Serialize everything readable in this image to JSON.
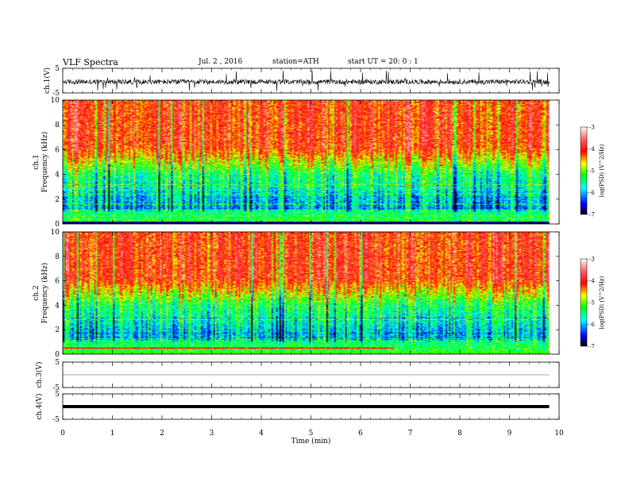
{
  "header": {
    "title": "VLF  Spectra",
    "date": "Jul.  2  , 2016",
    "station": "station=ATH",
    "start": "start  UT  =    20: 0   : 1"
  },
  "chart_data": [
    {
      "type": "line",
      "panel": "ch1-waveform",
      "ylabel": "ch.1(V)",
      "yticks": [
        "5",
        "-5"
      ],
      "ylim": [
        -5,
        5
      ],
      "description_values": {
        "baseline_v": -0.5,
        "noise_amplitude_v": 1.0,
        "spike_amplitude_v": 4.5
      }
    },
    {
      "type": "heatmap",
      "panel": "ch1-spectrogram",
      "ylabel": "Frequency (kHz)",
      "channel_label": "ch.1",
      "yticks": [
        "0",
        "2",
        "4",
        "6",
        "8",
        "10"
      ],
      "ylim": [
        0,
        10
      ],
      "colorbar": {
        "label": "log(PSD) (V^2/Hz)",
        "ticks": [
          "-3",
          "-4",
          "-5",
          "-6",
          "-7"
        ],
        "range": [
          -7,
          -3
        ]
      }
    },
    {
      "type": "heatmap",
      "panel": "ch2-spectrogram",
      "ylabel": "Frequency (kHz)",
      "channel_label": "ch.2",
      "yticks": [
        "0",
        "2",
        "4",
        "6",
        "8",
        "10"
      ],
      "ylim": [
        0,
        10
      ],
      "colorbar": {
        "label": "log(PSD) (V^2/Hz)",
        "ticks": [
          "-3",
          "-4",
          "-5",
          "-6",
          "-7"
        ],
        "range": [
          -7,
          -3
        ]
      }
    },
    {
      "type": "line",
      "panel": "ch3-waveform",
      "ylabel": "ch.3(V)",
      "yticks": [
        "5",
        "-5"
      ],
      "ylim": [
        -5,
        5
      ],
      "description_values": {
        "baseline_v": 0
      }
    },
    {
      "type": "line",
      "panel": "ch4-waveform",
      "ylabel": "ch.4(V)",
      "yticks": [
        "5",
        "-5"
      ],
      "ylim": [
        -5,
        5
      ],
      "description_values": {
        "baseline_v": 0
      }
    }
  ],
  "xaxis": {
    "label": "Time  (min)",
    "ticks": [
      "0",
      "1",
      "2",
      "3",
      "4",
      "5",
      "6",
      "7",
      "8",
      "9",
      "10"
    ],
    "range": [
      0,
      10
    ],
    "data_end_min": 9.8
  }
}
